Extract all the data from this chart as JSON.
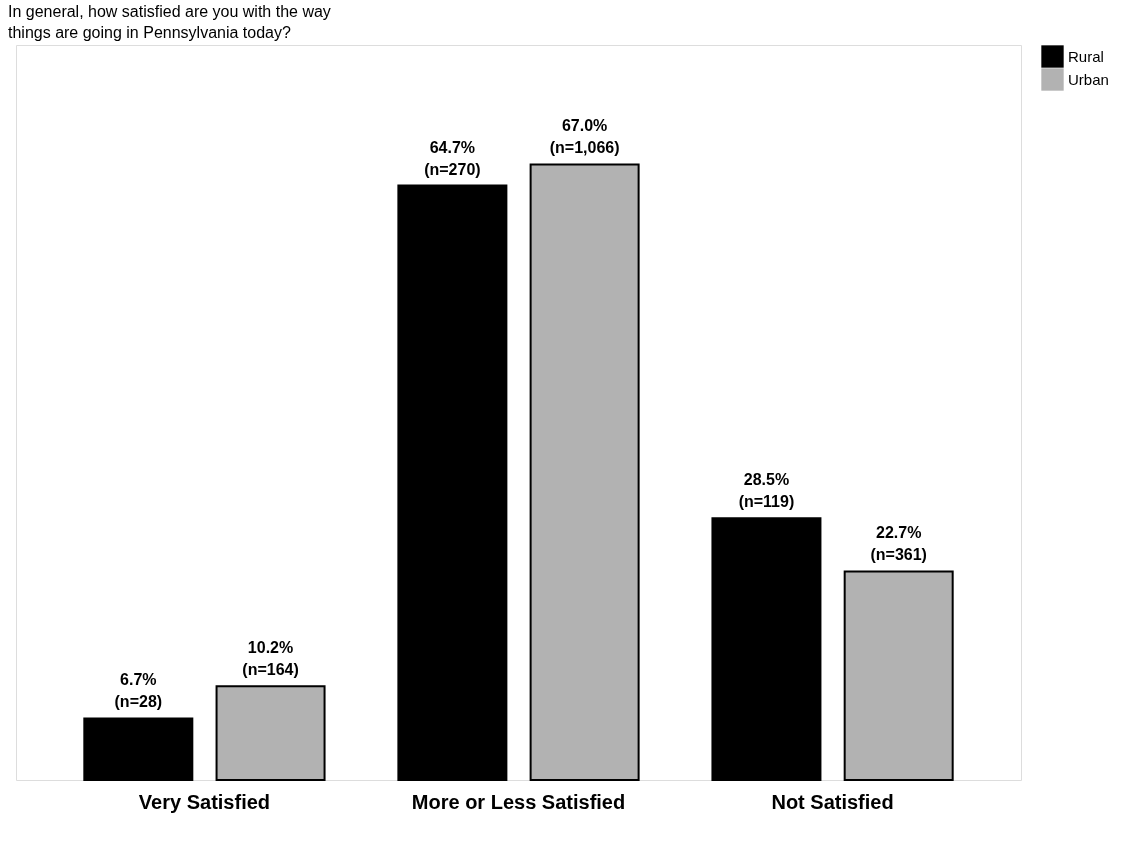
{
  "chart_data": {
    "type": "bar",
    "title": "In general, how satisfied are you with the way things are going in Pennsylvania today?",
    "categories": [
      "Very Satisfied",
      "More or Less Satisfied",
      "Not Satisfied"
    ],
    "series": [
      {
        "name": "Rural",
        "color": "#000000",
        "values": [
          6.7,
          64.7,
          28.5
        ],
        "value_labels": [
          "6.7%\n(n=28)",
          "64.7%\n(n=270)",
          "28.5%\n(n=119)"
        ]
      },
      {
        "name": "Urban",
        "color": "#b2b2b2",
        "values": [
          10.2,
          67.0,
          22.7
        ],
        "value_labels": [
          "10.2%\n(n=164)",
          "67.0%\n(n=1,066)",
          "22.7%\n(n=361)"
        ]
      }
    ],
    "ylim": [
      0,
      80
    ],
    "tick_labels": "x",
    "grid": false,
    "legend": "right"
  }
}
